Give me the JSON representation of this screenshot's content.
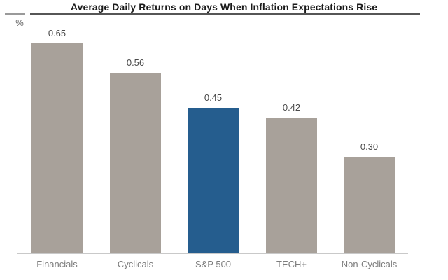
{
  "chart": {
    "title": "Average Daily Returns on Days When Inflation Expectations Rise",
    "unit_label": "%"
  },
  "chart_data": {
    "type": "bar",
    "title": "Average Daily Returns on Days When Inflation Expectations Rise",
    "ylabel": "%",
    "xlabel": "",
    "categories": [
      "Financials",
      "Cyclicals",
      "S&P 500",
      "TECH+",
      "Non-Cyclicals"
    ],
    "values": [
      0.65,
      0.56,
      0.45,
      0.42,
      0.3
    ],
    "value_labels": [
      "0.65",
      "0.56",
      "0.45",
      "0.42",
      "0.30"
    ],
    "bar_colors": [
      "#a8a19a",
      "#a8a19a",
      "#255d8e",
      "#a8a19a",
      "#a8a19a"
    ],
    "highlighted_category": "S&P 500",
    "ylim": [
      0,
      0.7
    ],
    "grid": false,
    "legend": "none"
  },
  "colors": {
    "default_bar": "#a8a19a",
    "highlight_bar": "#255d8e",
    "axis_line": "#c9c9c9",
    "title_text": "#1a1a1a",
    "title_rule": "#565656",
    "unit_tick": "#9a9a9a",
    "value_label": "#4a4a4a",
    "category_label": "#7d7d7d"
  }
}
